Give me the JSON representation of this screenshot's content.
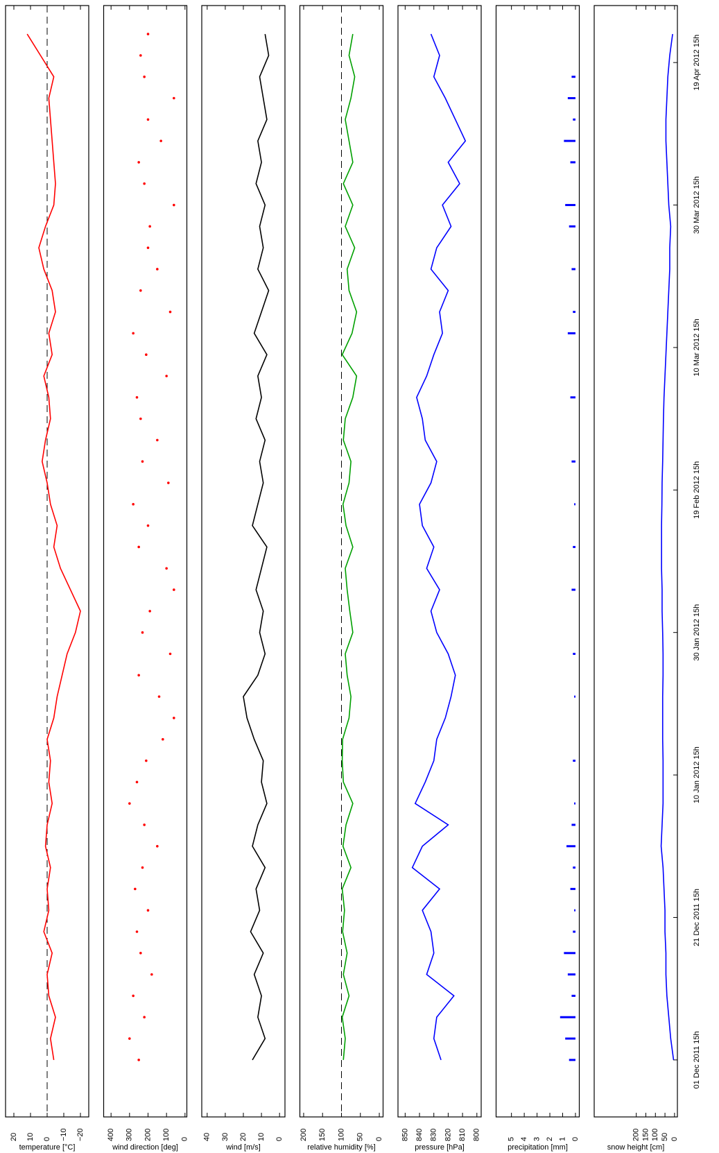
{
  "chart_data": [
    {
      "type": "line",
      "ylabel": "temperature [°C]",
      "color": "#ff0000",
      "reference_line": 0,
      "x": [
        0,
        3,
        6,
        9,
        12,
        15,
        18,
        21,
        24,
        27,
        30,
        33,
        36,
        39,
        42,
        45,
        48,
        51,
        54,
        57,
        60,
        63,
        66,
        69,
        72,
        75,
        78,
        81,
        84,
        87,
        90,
        93,
        96,
        99,
        102,
        105,
        108,
        111,
        114,
        117,
        120,
        123,
        126,
        129,
        132,
        135,
        138,
        141,
        144
      ],
      "values": [
        -4,
        -2,
        -5,
        -1,
        0,
        -3,
        2,
        -1,
        0,
        -2,
        1,
        0,
        -3,
        -1,
        -2,
        0,
        -4,
        -6,
        -9,
        -12,
        -17,
        -20,
        -14,
        -8,
        -4,
        -6,
        -2,
        0,
        3,
        1,
        -2,
        -1,
        2,
        -3,
        -1,
        -5,
        -3,
        2,
        5,
        1,
        -4,
        -5,
        -4,
        -3,
        -2,
        -1,
        -4,
        4,
        12
      ],
      "xlim": [
        -8,
        148
      ],
      "ylim": [
        -25,
        25
      ],
      "yticks": [
        {
          "value": 20,
          "label": "20"
        },
        {
          "value": 10,
          "label": "10"
        },
        0,
        {
          "value": -10,
          "label": "−10"
        },
        {
          "value": -20,
          "label": "−20"
        }
      ]
    },
    {
      "type": "scatter",
      "ylabel": "wind direction [deg]",
      "color": "#ff0000",
      "x": [
        0,
        3,
        6,
        9,
        12,
        15,
        18,
        21,
        24,
        27,
        30,
        33,
        36,
        39,
        42,
        45,
        48,
        51,
        54,
        57,
        60,
        63,
        66,
        69,
        72,
        75,
        78,
        81,
        84,
        87,
        90,
        93,
        96,
        99,
        102,
        105,
        108,
        111,
        114,
        117,
        120,
        123,
        126,
        129,
        132,
        135,
        138,
        141,
        144
      ],
      "values": [
        250,
        300,
        220,
        280,
        180,
        240,
        260,
        200,
        270,
        230,
        150,
        220,
        300,
        260,
        210,
        120,
        60,
        140,
        250,
        80,
        230,
        190,
        60,
        100,
        250,
        200,
        280,
        90,
        230,
        150,
        240,
        260,
        100,
        210,
        280,
        80,
        240,
        150,
        200,
        190,
        60,
        220,
        250,
        130,
        200,
        60,
        220,
        240,
        200
      ],
      "xlim": [
        -8,
        148
      ],
      "ylim": [
        -10,
        440
      ],
      "yticks": [
        400,
        300,
        200,
        100,
        0
      ]
    },
    {
      "type": "line",
      "ylabel": "wind [m/s]",
      "color": "#000000",
      "x": [
        0,
        3,
        6,
        9,
        12,
        15,
        18,
        21,
        24,
        27,
        30,
        33,
        36,
        39,
        42,
        45,
        48,
        51,
        54,
        57,
        60,
        63,
        66,
        69,
        72,
        75,
        78,
        81,
        84,
        87,
        90,
        93,
        96,
        99,
        102,
        105,
        108,
        111,
        114,
        117,
        120,
        123,
        126,
        129,
        132,
        135,
        138,
        141,
        144
      ],
      "values": [
        15,
        8,
        12,
        10,
        14,
        9,
        16,
        11,
        13,
        8,
        15,
        12,
        7,
        10,
        9,
        14,
        18,
        20,
        12,
        8,
        11,
        9,
        13,
        10,
        7,
        15,
        12,
        9,
        11,
        8,
        13,
        10,
        12,
        7,
        14,
        10,
        6,
        12,
        9,
        11,
        8,
        13,
        10,
        12,
        7,
        9,
        11,
        6,
        8
      ],
      "xlim": [
        -8,
        148
      ],
      "ylim": [
        -3,
        43
      ],
      "yticks": [
        40,
        30,
        20,
        10,
        0
      ]
    },
    {
      "type": "line",
      "ylabel": "relative humidity [%]",
      "color": "#00a000",
      "reference_line": 100,
      "x": [
        0,
        3,
        6,
        9,
        12,
        15,
        18,
        21,
        24,
        27,
        30,
        33,
        36,
        39,
        42,
        45,
        48,
        51,
        54,
        57,
        60,
        63,
        66,
        69,
        72,
        75,
        78,
        81,
        84,
        87,
        90,
        93,
        96,
        99,
        102,
        105,
        108,
        111,
        114,
        117,
        120,
        123,
        126,
        129,
        132,
        135,
        138,
        141,
        144
      ],
      "values": [
        95,
        90,
        98,
        80,
        95,
        85,
        97,
        92,
        98,
        75,
        96,
        88,
        70,
        95,
        98,
        97,
        80,
        75,
        85,
        90,
        70,
        78,
        85,
        90,
        70,
        88,
        96,
        80,
        75,
        95,
        90,
        70,
        60,
        98,
        72,
        60,
        80,
        85,
        65,
        90,
        70,
        95,
        70,
        80,
        90,
        75,
        65,
        80,
        70
      ],
      "xlim": [
        -8,
        148
      ],
      "ylim": [
        -10,
        210
      ],
      "yticks": [
        200,
        150,
        100,
        50,
        0
      ]
    },
    {
      "type": "line",
      "ylabel": "pressure [hPa]",
      "color": "#0000ff",
      "x": [
        0,
        3,
        6,
        9,
        12,
        15,
        18,
        21,
        24,
        27,
        30,
        33,
        36,
        39,
        42,
        45,
        48,
        51,
        54,
        57,
        60,
        63,
        66,
        69,
        72,
        75,
        78,
        81,
        84,
        87,
        90,
        93,
        96,
        99,
        102,
        105,
        108,
        111,
        114,
        117,
        120,
        123,
        126,
        129,
        132,
        135,
        138,
        141,
        144
      ],
      "values": [
        825,
        830,
        828,
        816,
        835,
        830,
        832,
        838,
        826,
        845,
        838,
        820,
        843,
        836,
        830,
        828,
        822,
        818,
        815,
        820,
        828,
        832,
        826,
        835,
        830,
        838,
        840,
        832,
        828,
        836,
        838,
        842,
        835,
        830,
        824,
        826,
        820,
        832,
        828,
        818,
        824,
        812,
        820,
        808,
        815,
        822,
        830,
        826,
        832
      ],
      "xlim": [
        -8,
        148
      ],
      "ylim": [
        797,
        855
      ],
      "yticks": [
        850,
        840,
        830,
        820,
        810,
        800
      ]
    },
    {
      "type": "bar",
      "ylabel": "precipitation [mm]",
      "color": "#0000ff",
      "x": [
        0,
        3,
        6,
        9,
        12,
        15,
        18,
        21,
        24,
        27,
        30,
        33,
        36,
        39,
        42,
        45,
        48,
        51,
        54,
        57,
        60,
        63,
        66,
        69,
        72,
        75,
        78,
        81,
        84,
        87,
        90,
        93,
        96,
        99,
        102,
        105,
        108,
        111,
        114,
        117,
        120,
        123,
        126,
        129,
        132,
        135,
        138,
        141,
        144
      ],
      "values": [
        0.5,
        0.8,
        1.2,
        0.3,
        0.6,
        0.9,
        0.2,
        0.1,
        0.4,
        0.2,
        0.7,
        0.3,
        0.1,
        0,
        0.2,
        0,
        0,
        0.1,
        0,
        0.2,
        0,
        0,
        0.3,
        0,
        0.2,
        0,
        0.1,
        0,
        0.3,
        0,
        0,
        0.4,
        0,
        0,
        0.6,
        0.2,
        0,
        0.3,
        0,
        0.5,
        0.8,
        0,
        0.4,
        0.9,
        0.2,
        0.6,
        0.3,
        0,
        0
      ],
      "xlim": [
        -8,
        148
      ],
      "ylim": [
        -0.3,
        6.2
      ],
      "yticks": [
        5,
        4,
        3,
        2,
        1,
        0
      ]
    },
    {
      "type": "line",
      "ylabel": "snow height [cm]",
      "color": "#0000ff",
      "x": [
        0,
        3,
        6,
        9,
        12,
        15,
        18,
        21,
        24,
        27,
        30,
        33,
        36,
        39,
        42,
        45,
        48,
        51,
        54,
        57,
        60,
        63,
        66,
        69,
        72,
        75,
        78,
        81,
        84,
        87,
        90,
        93,
        96,
        99,
        102,
        105,
        108,
        111,
        114,
        117,
        120,
        123,
        126,
        129,
        132,
        135,
        138,
        141,
        144
      ],
      "values": [
        5,
        20,
        30,
        40,
        45,
        45,
        50,
        50,
        55,
        60,
        70,
        65,
        60,
        60,
        60,
        62,
        62,
        62,
        60,
        60,
        62,
        65,
        65,
        68,
        68,
        68,
        66,
        65,
        62,
        60,
        58,
        55,
        50,
        45,
        40,
        35,
        30,
        25,
        25,
        20,
        30,
        35,
        40,
        45,
        45,
        40,
        35,
        25,
        10
      ],
      "xlim": [
        -8,
        148
      ],
      "ylim": [
        -15,
        420
      ],
      "yticks": [
        200,
        150,
        100,
        50,
        0
      ],
      "xticks": [
        {
          "value": 0,
          "label": "01 Dec 2011 15h"
        },
        {
          "value": 20,
          "label": "21 Dec 2011 15h"
        },
        {
          "value": 40,
          "label": "10 Jan 2012 15h"
        },
        {
          "value": 60,
          "label": "30 Jan 2012 15h"
        },
        {
          "value": 80,
          "label": "19 Feb 2012 15h"
        },
        {
          "value": 100,
          "label": "10 Mar 2012 15h"
        },
        {
          "value": 120,
          "label": "30 Mar 2012 15h"
        },
        {
          "value": 140,
          "label": "19 Apr 2012 15h"
        }
      ]
    }
  ]
}
